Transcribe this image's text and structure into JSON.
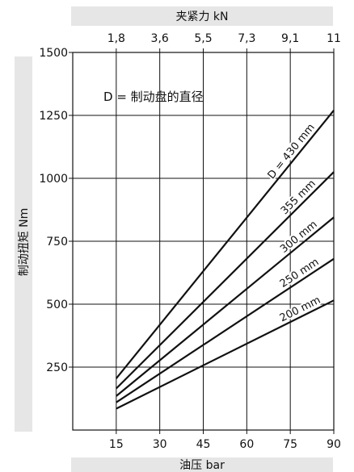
{
  "chart_data": {
    "type": "line",
    "title": "",
    "xlabel": "油压 bar",
    "ylabel": "制动扭矩 Nm",
    "x2label": "夹紧力 kN",
    "xlim": [
      0,
      90
    ],
    "ylim": [
      0,
      1500
    ],
    "xticks": [
      15,
      30,
      45,
      60,
      75,
      90
    ],
    "x_tick_labels": [
      "15",
      "30",
      "45",
      "60",
      "75",
      "90"
    ],
    "yticks": [
      250,
      500,
      750,
      1000,
      1250,
      1500
    ],
    "y_tick_labels": [
      "250",
      "500",
      "750",
      "1000",
      "1250",
      "1500"
    ],
    "x2ticks": [
      15,
      30,
      45,
      60,
      75,
      90
    ],
    "x2_tick_labels": [
      "1,8",
      "3,6",
      "5,5",
      "7,3",
      "9,1",
      "11"
    ],
    "grid": true,
    "annotation": "D = 制动盘的直径",
    "series": [
      {
        "name": "D = 430 mm",
        "x": [
          15,
          90
        ],
        "y": [
          205,
          1270
        ]
      },
      {
        "name": "355 mm",
        "x": [
          15,
          90
        ],
        "y": [
          165,
          1025
        ]
      },
      {
        "name": "300 mm",
        "x": [
          15,
          90
        ],
        "y": [
          135,
          845
        ]
      },
      {
        "name": "250 mm",
        "x": [
          15,
          90
        ],
        "y": [
          110,
          680
        ]
      },
      {
        "name": "200 mm",
        "x": [
          15,
          90
        ],
        "y": [
          85,
          515
        ]
      }
    ]
  }
}
